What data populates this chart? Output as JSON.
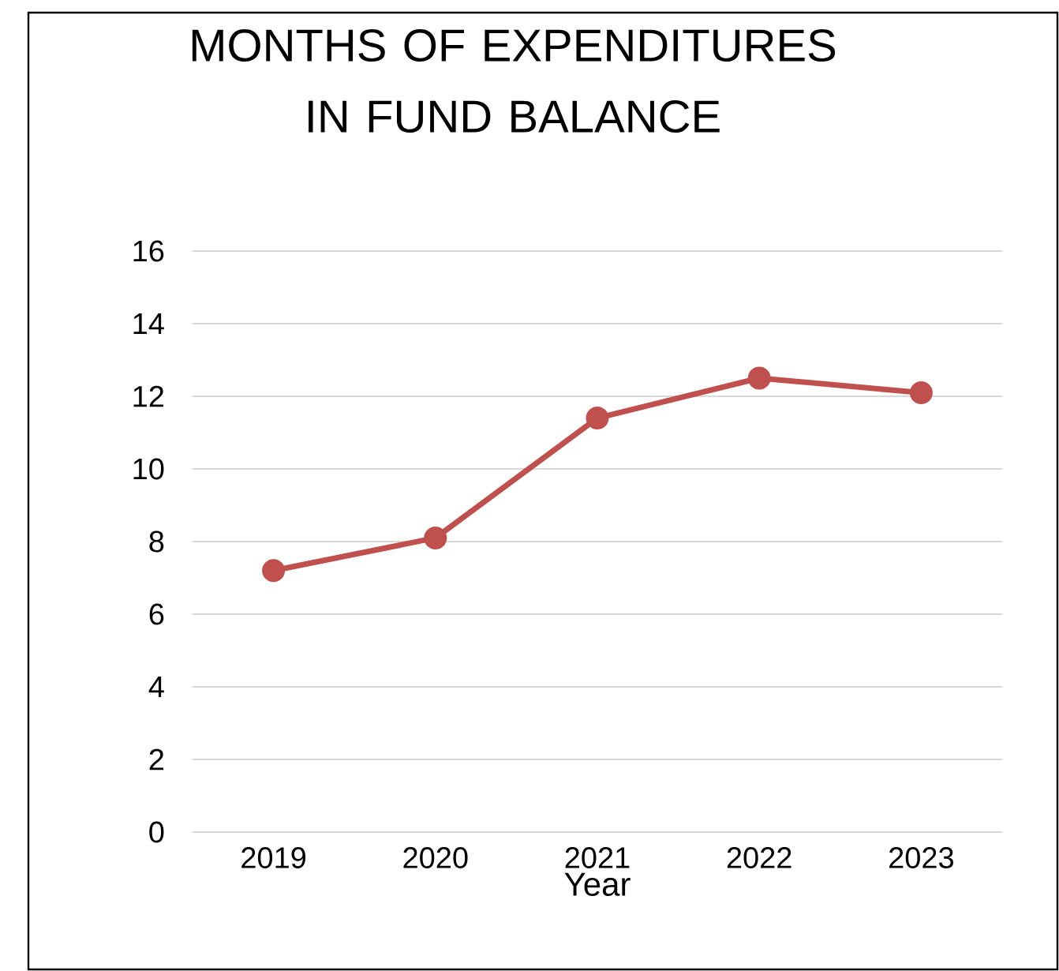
{
  "chart_data": {
    "type": "line",
    "title": "MONTHS OF EXPENDITURES IN FUND BALANCE",
    "xlabel": "Year",
    "categories": [
      "2019",
      "2020",
      "2021",
      "2022",
      "2023"
    ],
    "series": [
      {
        "color": "#c0504d",
        "values": [
          7.2,
          8.1,
          11.4,
          12.5,
          12.1
        ]
      }
    ],
    "ylim": [
      0,
      16
    ],
    "yticks": [
      0,
      2,
      4,
      6,
      8,
      10,
      12,
      14,
      16
    ],
    "grid": "y",
    "marker": "circle",
    "line_style": "solid"
  }
}
